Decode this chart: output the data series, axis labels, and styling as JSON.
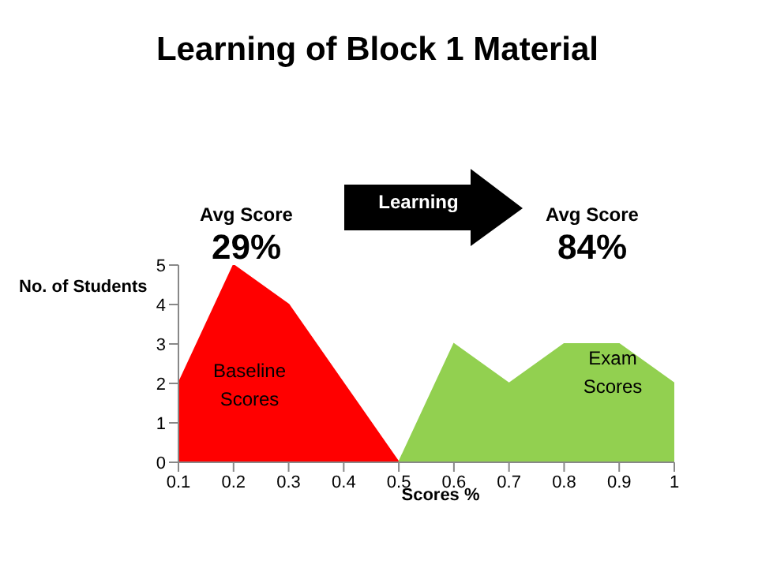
{
  "chart_data": {
    "type": "area",
    "title": "Learning of Block 1 Material",
    "xlabel": "Scores %",
    "ylabel": "No. of Students",
    "annotations": [
      "Avg Score",
      "29%",
      "Learning",
      "Avg Score",
      "84%"
    ],
    "x": [
      0.1,
      0.2,
      0.3,
      0.4,
      0.5,
      0.6,
      0.7,
      0.8,
      0.9,
      1
    ],
    "series": [
      {
        "name": "Baseline Scores",
        "color": "#ff0000",
        "values": [
          2,
          5,
          4,
          2,
          0,
          0,
          0,
          0,
          0,
          0
        ]
      },
      {
        "name": "Exam Scores",
        "color": "#92d050",
        "values": [
          null,
          null,
          null,
          null,
          0,
          3,
          2,
          3,
          3,
          2
        ]
      }
    ],
    "xlim": [
      0.1,
      1
    ],
    "xticks": [
      0.1,
      0.2,
      0.3,
      0.4,
      0.5,
      0.6,
      0.7,
      0.8,
      0.9,
      1
    ],
    "ylim": [
      0,
      5
    ],
    "yticks": [
      0,
      1,
      2,
      3,
      4,
      5
    ],
    "grid": false,
    "legend": false
  }
}
